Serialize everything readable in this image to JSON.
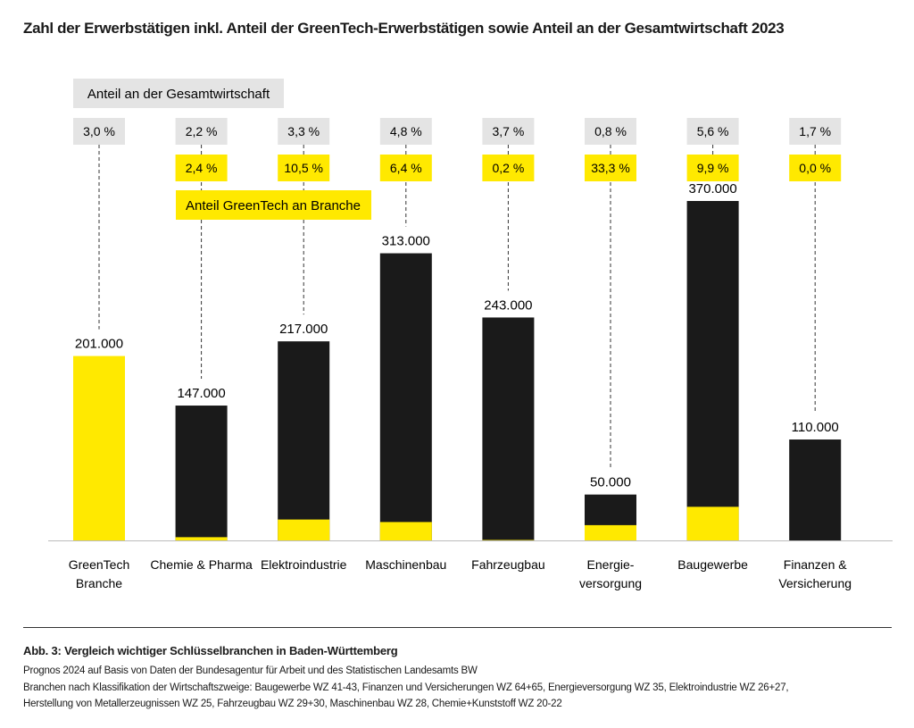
{
  "title": "Zahl der Erwerbstätigen inkl. Anteil der GreenTech-Erwerbstätigen sowie Anteil an der Gesamtwirtschaft 2023",
  "chart_data": {
    "type": "bar",
    "categories": [
      "GreenTech\nBranche",
      "Chemie & Pharma",
      "Elektroindustrie",
      "Maschinenbau",
      "Fahrzeugbau",
      "Energie-\nversorgung",
      "Baugewerbe",
      "Finanzen &\nVersicherung"
    ],
    "values": [
      201000,
      147000,
      217000,
      313000,
      243000,
      50000,
      370000,
      110000
    ],
    "value_labels": [
      "201.000",
      "147.000",
      "217.000",
      "313.000",
      "243.000",
      "50.000",
      "370.000",
      "110.000"
    ],
    "share_total_economy": [
      "3,0 %",
      "2,2 %",
      "3,3 %",
      "4,8 %",
      "3,7 %",
      "0,8 %",
      "5,6 %",
      "1,7 %"
    ],
    "share_greentech_in_branch": [
      null,
      "2,4 %",
      "10,5 %",
      "6,4 %",
      "0,2 %",
      "33,3 %",
      "9,9 %",
      "0,0 %"
    ],
    "share_greentech_values": [
      100,
      2.4,
      10.5,
      6.4,
      0.2,
      33.3,
      9.9,
      0.0
    ],
    "legend": {
      "total_economy": "Anteil an der Gesamtwirtschaft",
      "greentech": "Anteil GreenTech an Branche"
    },
    "ylim": [
      0,
      370000
    ],
    "grid": false,
    "colors": {
      "greentech": "#ffe900",
      "branch": "#1a1a1a",
      "gray_label": "#e4e4e4"
    }
  },
  "footer": {
    "caption": "Abb. 3: Vergleich wichtiger Schlüsselbranchen in Baden-Württemberg",
    "source": "Prognos 2024 auf Basis von Daten der Bundesagentur für Arbeit und des Statistischen Landesamts BW",
    "note1": "Branchen nach Klassifikation der Wirtschaftszweige: Baugewerbe WZ 41-43, Finanzen und Versicherungen WZ 64+65, Energieversorgung WZ 35, Elektroindustrie WZ 26+27,",
    "note2": "Herstellung von Metallerzeugnissen WZ 25, Fahrzeugbau WZ 29+30, Maschinenbau WZ 28, Chemie+Kunststoff WZ 20-22"
  }
}
